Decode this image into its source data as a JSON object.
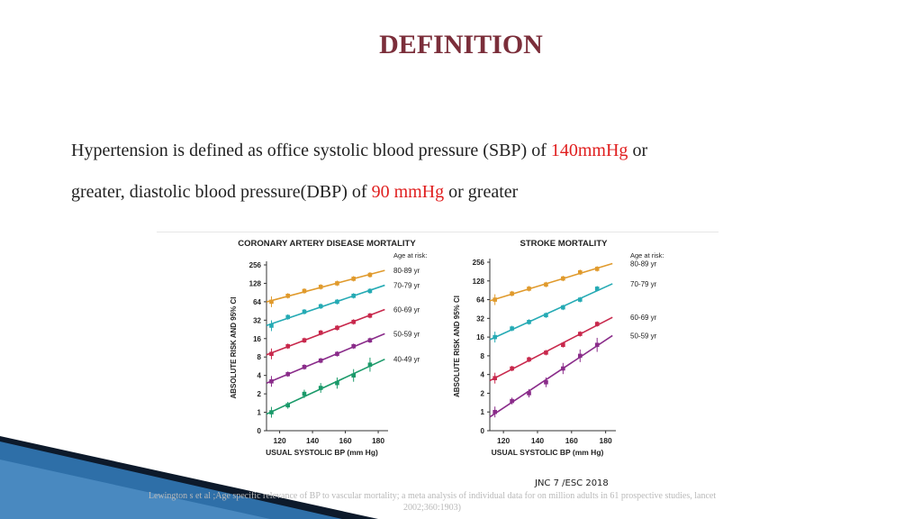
{
  "slide": {
    "title": "DEFINITION",
    "body_line1_a": "Hypertension is defined as office systolic blood pressure (SBP) of ",
    "body_line1_highlight": "140mmHg",
    "body_line1_b": "  or",
    "body_line2_a": "greater, diastolic blood pressure(DBP) of ",
    "body_line2_highlight": "90 mmHg",
    "body_line2_b": " or greater",
    "source_tag": "JNC 7 /ESC 2018",
    "citation_line1": "Lewington s et al ;Age specific relevance of BP to vascular mortality; a meta analysis of individual data for on million adults in 61 prospective studies, lancet",
    "citation_line2": "2002;360:1903)",
    "colors": {
      "title": "#7b2e3a",
      "highlight": "#e01e1e",
      "decor_dark": "#0d1a2b",
      "decor_blue": "#2e6fa8"
    }
  },
  "chart_data": [
    {
      "type": "scatter",
      "title": "CORONARY ARTERY DISEASE MORTALITY",
      "xlabel": "USUAL SYSTOLIC BP (mm Hg)",
      "ylabel": "ABSOLUTE RISK AND 95% CI",
      "xticks": [
        120,
        140,
        160,
        180
      ],
      "xlim": [
        112,
        186
      ],
      "yscale": "log2",
      "yticks": [
        "0",
        "1",
        "2",
        "4",
        "8",
        "16",
        "32",
        "64",
        "128",
        "256"
      ],
      "legend_title": "Age at risk:",
      "series": [
        {
          "name": "80-89 yr",
          "color": "#e09a2c",
          "x": [
            115,
            125,
            135,
            145,
            155,
            165,
            175
          ],
          "y": [
            64,
            80,
            96,
            112,
            128,
            152,
            176
          ]
        },
        {
          "name": "70-79 yr",
          "color": "#25aab4",
          "x": [
            115,
            125,
            135,
            145,
            155,
            165,
            175
          ],
          "y": [
            26,
            36,
            44,
            54,
            64,
            80,
            96
          ]
        },
        {
          "name": "60-69 yr",
          "color": "#c8284c",
          "x": [
            115,
            125,
            135,
            145,
            155,
            165,
            175
          ],
          "y": [
            9,
            12,
            15,
            20,
            24,
            30,
            38
          ]
        },
        {
          "name": "50-59 yr",
          "color": "#8a2c8a",
          "x": [
            115,
            125,
            135,
            145,
            155,
            165,
            175
          ],
          "y": [
            3.2,
            4.2,
            5.5,
            7,
            9,
            12,
            15
          ]
        },
        {
          "name": "40-49 yr",
          "color": "#1b9a6a",
          "x": [
            115,
            125,
            135,
            145,
            155,
            165,
            175
          ],
          "y": [
            1,
            1.3,
            2,
            2.5,
            3,
            4,
            6
          ]
        }
      ]
    },
    {
      "type": "scatter",
      "title": "STROKE MORTALITY",
      "xlabel": "USUAL SYSTOLIC BP (mm Hg)",
      "ylabel": "ABSOLUTE RISK AND 95% CI",
      "xticks": [
        120,
        140,
        160,
        180
      ],
      "xlim": [
        112,
        186
      ],
      "yscale": "log2",
      "yticks": [
        "0",
        "1",
        "2",
        "4",
        "8",
        "16",
        "32",
        "64",
        "128",
        "256"
      ],
      "legend_title": "Age at risk:",
      "series": [
        {
          "name": "80-89 yr",
          "color": "#e09a2c",
          "x": [
            115,
            125,
            135,
            145,
            155,
            165,
            175
          ],
          "y": [
            64,
            80,
            96,
            112,
            140,
            176,
            200
          ]
        },
        {
          "name": "70-79 yr",
          "color": "#25aab4",
          "x": [
            115,
            125,
            135,
            145,
            155,
            165,
            175
          ],
          "y": [
            16,
            22,
            28,
            36,
            48,
            64,
            96
          ]
        },
        {
          "name": "60-69 yr",
          "color": "#c8284c",
          "x": [
            115,
            125,
            135,
            145,
            155,
            165,
            175
          ],
          "y": [
            3.5,
            5,
            7,
            9,
            12,
            18,
            26
          ]
        },
        {
          "name": "50-59 yr",
          "color": "#8a2c8a",
          "x": [
            115,
            125,
            135,
            145,
            155,
            165,
            175
          ],
          "y": [
            1,
            1.5,
            2,
            3,
            5,
            8,
            12
          ]
        }
      ]
    }
  ]
}
